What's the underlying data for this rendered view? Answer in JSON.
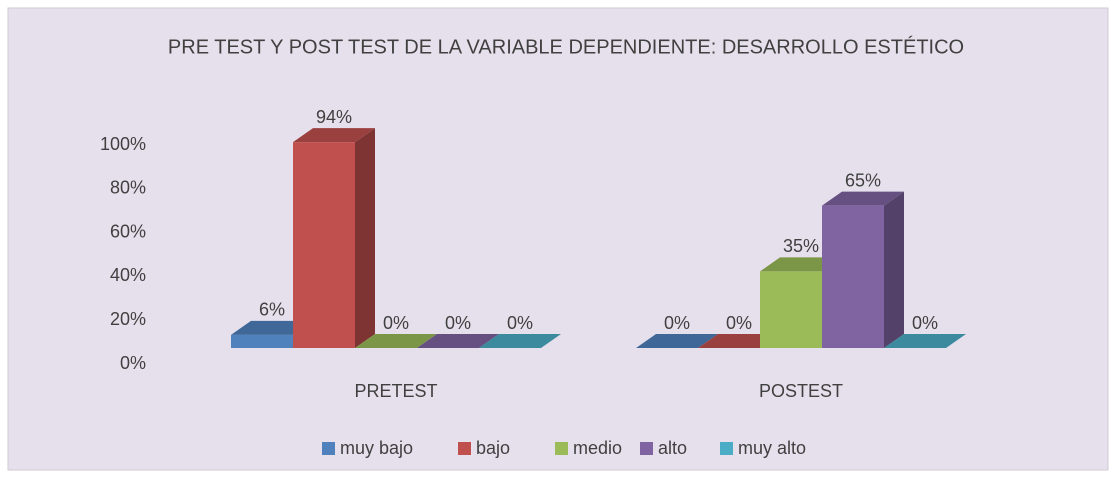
{
  "chart_data": {
    "type": "bar3d",
    "title": "PRE TEST Y POST TEST DE LA VARIABLE DEPENDIENTE: DESARROLLO ESTÉTICO",
    "categories": [
      "PRETEST",
      "POSTEST"
    ],
    "series": [
      {
        "name": "muy bajo",
        "color": "#4f81bd",
        "values": [
          6,
          0
        ],
        "value_labels": [
          "6%",
          "0%"
        ]
      },
      {
        "name": "bajo",
        "color": "#c0504d",
        "values": [
          94,
          0
        ],
        "value_labels": [
          "94%",
          "0%"
        ]
      },
      {
        "name": "medio",
        "color": "#9bbb59",
        "values": [
          0,
          35
        ],
        "value_labels": [
          "0%",
          "35%"
        ]
      },
      {
        "name": "alto",
        "color": "#8064a2",
        "values": [
          0,
          65
        ],
        "value_labels": [
          "0%",
          "65%"
        ]
      },
      {
        "name": "muy alto",
        "color": "#4bacc6",
        "values": [
          0,
          0
        ],
        "value_labels": [
          "0%",
          "0%"
        ]
      }
    ],
    "ylim": [
      0,
      100
    ],
    "yticks": [
      {
        "value": 0,
        "label": "0%"
      },
      {
        "value": 20,
        "label": "20%"
      },
      {
        "value": 40,
        "label": "40%"
      },
      {
        "value": 60,
        "label": "60%"
      },
      {
        "value": 80,
        "label": "80%"
      },
      {
        "value": 100,
        "label": "100%"
      }
    ],
    "legend": "bottom"
  }
}
